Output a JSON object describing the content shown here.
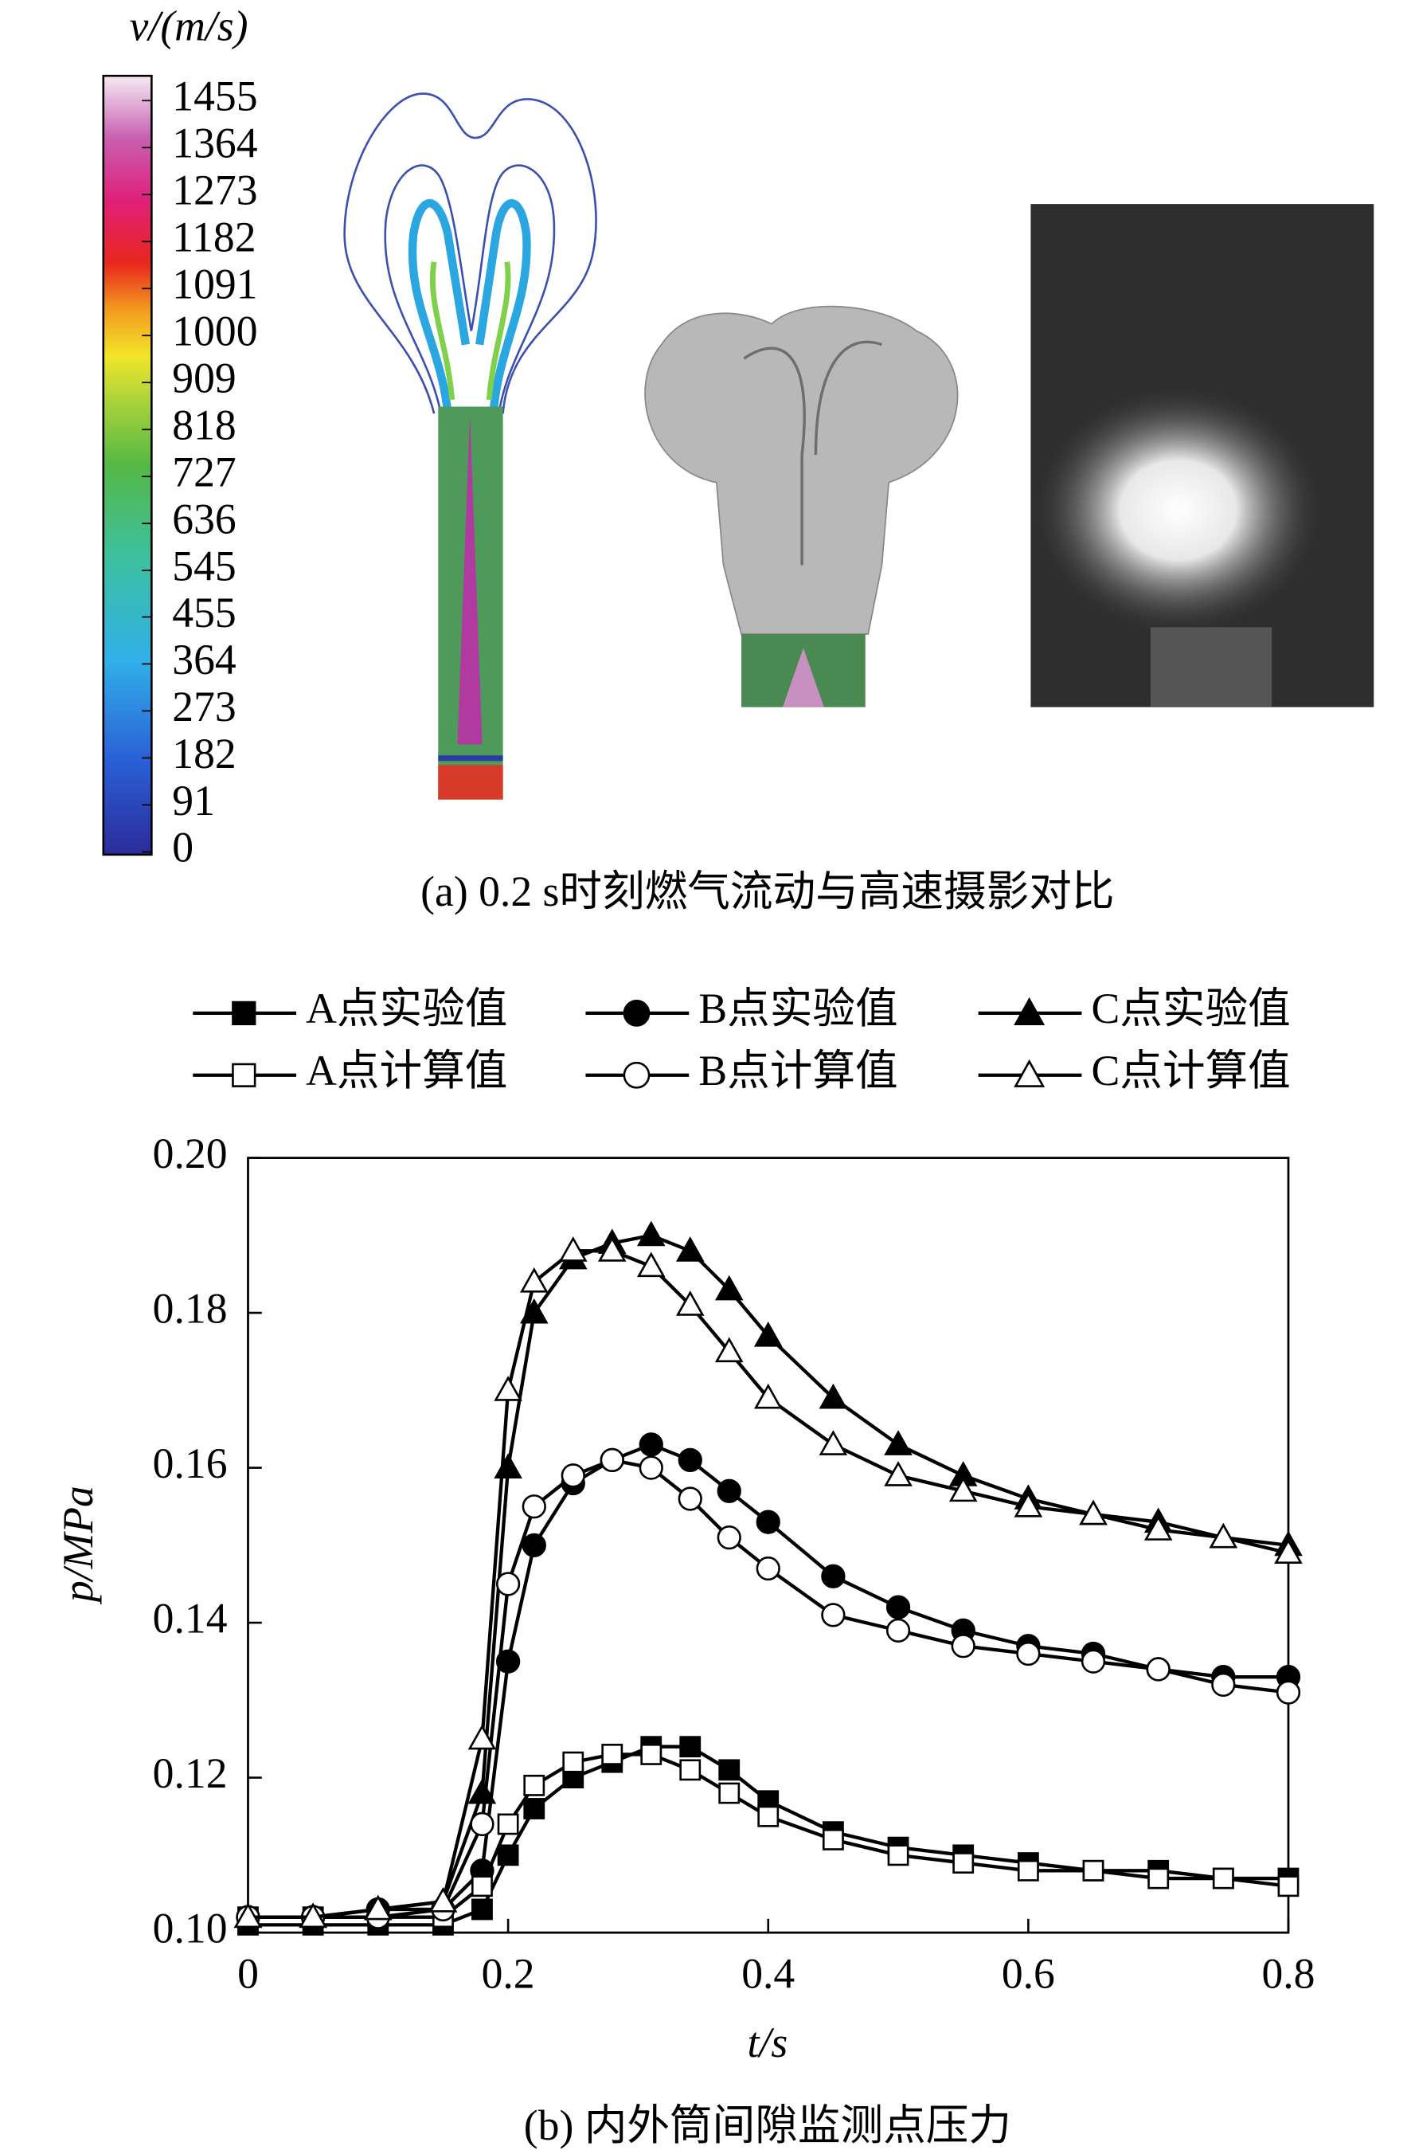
{
  "panel_a": {
    "colorbar_title": "v/(m/s)",
    "colorbar_ticks": [
      1455,
      1364,
      1273,
      1182,
      1091,
      1000,
      909,
      818,
      727,
      636,
      545,
      455,
      364,
      273,
      182,
      91,
      0
    ],
    "caption": "(a) 0.2 s时刻燃气流动与高速摄影对比"
  },
  "chart_data": {
    "type": "line",
    "caption": "(b) 内外筒间隙监测点压力",
    "x_label": "t/s",
    "y_label": "p/MPa",
    "xlim": [
      0,
      0.8
    ],
    "xticks": [
      0,
      0.2,
      0.4,
      0.6,
      0.8
    ],
    "ylim": [
      0.1,
      0.2
    ],
    "yticks": [
      {
        "value": 0.1,
        "label": "0.10"
      },
      0.12,
      0.14,
      0.16,
      0.18,
      {
        "value": 0.2,
        "label": "0.20"
      }
    ],
    "x": [
      0,
      0.05,
      0.1,
      0.15,
      0.18,
      0.2,
      0.22,
      0.25,
      0.28,
      0.31,
      0.34,
      0.37,
      0.4,
      0.45,
      0.5,
      0.55,
      0.6,
      0.65,
      0.7,
      0.75,
      0.8
    ],
    "series": [
      {
        "name": "A点实验值",
        "color": "#000000",
        "marker": "square",
        "marker_fill": "#000000",
        "values": [
          0.101,
          0.101,
          0.101,
          0.101,
          0.103,
          0.11,
          0.116,
          0.12,
          0.122,
          0.124,
          0.124,
          0.121,
          0.117,
          0.113,
          0.111,
          0.11,
          0.109,
          0.108,
          0.108,
          0.107,
          0.107
        ]
      },
      {
        "name": "B点实验值",
        "color": "#000000",
        "marker": "circle",
        "marker_fill": "#000000",
        "values": [
          0.102,
          0.102,
          0.103,
          0.103,
          0.108,
          0.135,
          0.15,
          0.158,
          0.161,
          0.163,
          0.161,
          0.157,
          0.153,
          0.146,
          0.142,
          0.139,
          0.137,
          0.136,
          0.134,
          0.133,
          0.133
        ]
      },
      {
        "name": "C点实验值",
        "color": "#000000",
        "marker": "triangle",
        "marker_fill": "#000000",
        "values": [
          0.102,
          0.102,
          0.103,
          0.104,
          0.118,
          0.16,
          0.18,
          0.187,
          0.189,
          0.19,
          0.188,
          0.183,
          0.177,
          0.169,
          0.163,
          0.159,
          0.156,
          0.154,
          0.153,
          0.151,
          0.15
        ]
      },
      {
        "name": "A点计算值",
        "color": "#000000",
        "marker": "square",
        "marker_fill": "#ffffff",
        "values": [
          0.102,
          0.102,
          0.102,
          0.102,
          0.106,
          0.114,
          0.119,
          0.122,
          0.123,
          0.123,
          0.121,
          0.118,
          0.115,
          0.112,
          0.11,
          0.109,
          0.108,
          0.108,
          0.107,
          0.107,
          0.106
        ]
      },
      {
        "name": "B点计算值",
        "color": "#000000",
        "marker": "circle",
        "marker_fill": "#ffffff",
        "values": [
          0.102,
          0.102,
          0.102,
          0.103,
          0.114,
          0.145,
          0.155,
          0.159,
          0.161,
          0.16,
          0.156,
          0.151,
          0.147,
          0.141,
          0.139,
          0.137,
          0.136,
          0.135,
          0.134,
          0.132,
          0.131
        ]
      },
      {
        "name": "C点计算值",
        "color": "#000000",
        "marker": "triangle",
        "marker_fill": "#ffffff",
        "values": [
          0.102,
          0.102,
          0.103,
          0.104,
          0.125,
          0.17,
          0.184,
          0.188,
          0.188,
          0.186,
          0.181,
          0.175,
          0.169,
          0.163,
          0.159,
          0.157,
          0.155,
          0.154,
          0.152,
          0.151,
          0.149
        ]
      }
    ]
  }
}
